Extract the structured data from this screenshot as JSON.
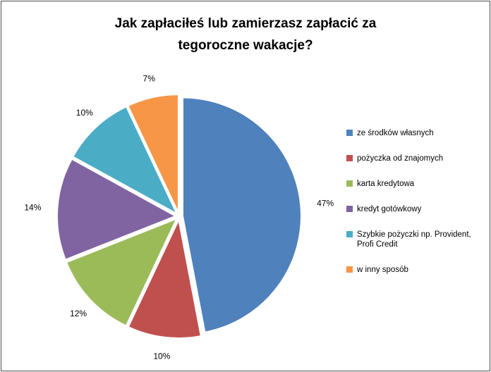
{
  "title": {
    "line1": "Jak zapłaciłeś lub zamierzasz zapłacić za",
    "line2": "tegoroczne wakacje?"
  },
  "chart_data": {
    "type": "pie",
    "title": "Jak zapłaciłeś lub zamierzasz zapłacić za tegoroczne wakacje?",
    "direction": "clockwise",
    "start_angle_deg": 0,
    "legend_position": "right",
    "slices": [
      {
        "label": "ze środków własnych",
        "value": 47,
        "pct_label": "47%",
        "color": "#4F81BD"
      },
      {
        "label": "pożyczka od znajomych",
        "value": 10,
        "pct_label": "10%",
        "color": "#C0504D"
      },
      {
        "label": "karta kredytowa",
        "value": 12,
        "pct_label": "12%",
        "color": "#9BBB59"
      },
      {
        "label": "kredyt gotówkowy",
        "value": 14,
        "pct_label": "14%",
        "color": "#8064A2"
      },
      {
        "label": "Szybkie pożyczki np. Provident, Profi Credit",
        "value": 10,
        "pct_label": "10%",
        "color": "#4BACC6"
      },
      {
        "label": "w inny sposób",
        "value": 7,
        "pct_label": "7%",
        "color": "#F79646"
      }
    ]
  }
}
